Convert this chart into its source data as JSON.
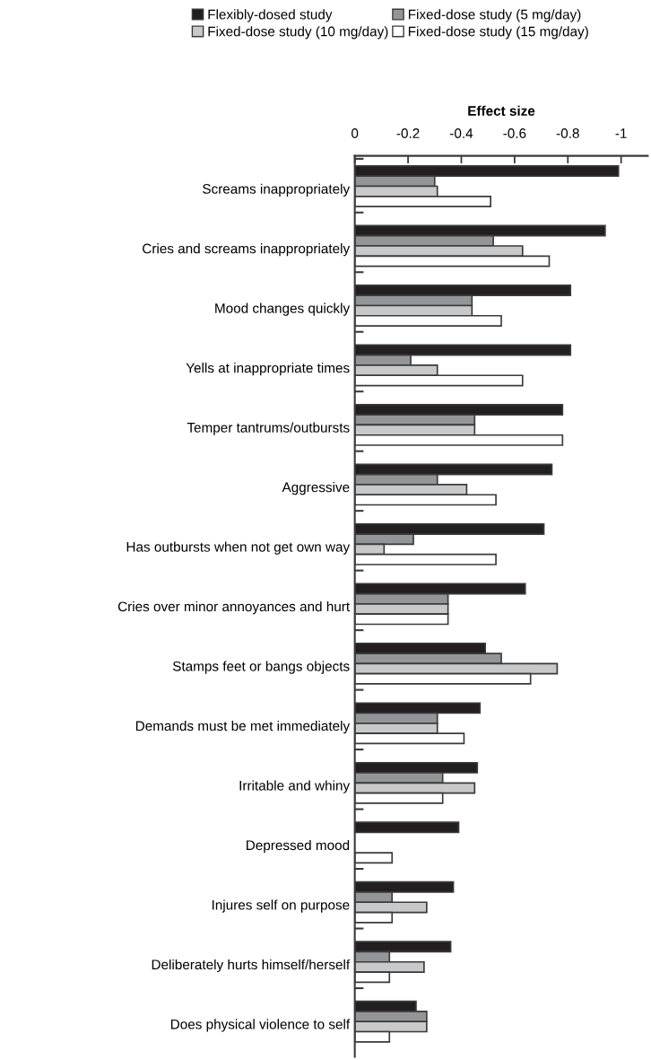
{
  "chart_data": {
    "type": "bar",
    "orientation": "horizontal",
    "xlabel": "Effect size",
    "categories": [
      "Screams inappropriately",
      "Cries and screams inappropriately",
      "Mood changes quickly",
      "Yells at inappropriate times",
      "Temper tantrums/outbursts",
      "Aggressive",
      "Has outbursts when not get own way",
      "Cries over minor annoyances and hurt",
      "Stamps feet or bangs objects",
      "Demands must be met immediately",
      "Irritable and whiny",
      "Depressed mood",
      "Injures self on purpose",
      "Deliberately hurts himself/herself",
      "Does physical violence to self"
    ],
    "series": [
      {
        "name": "Flexibly-dosed study",
        "color": "#231f20",
        "values": [
          -0.99,
          -0.94,
          -0.81,
          -0.81,
          -0.78,
          -0.74,
          -0.71,
          -0.64,
          -0.49,
          -0.47,
          -0.46,
          -0.39,
          -0.37,
          -0.36,
          -0.23
        ]
      },
      {
        "name": "Fixed-dose study (5 mg/day)",
        "color": "#939598",
        "values": [
          -0.3,
          -0.52,
          -0.44,
          -0.21,
          -0.45,
          -0.31,
          -0.22,
          -0.35,
          -0.55,
          -0.31,
          -0.33,
          null,
          -0.14,
          -0.13,
          -0.27
        ]
      },
      {
        "name": "Fixed-dose study (10 mg/day)",
        "color": "#c8c9cb",
        "values": [
          -0.31,
          -0.63,
          -0.44,
          -0.31,
          -0.45,
          -0.42,
          -0.11,
          -0.35,
          -0.76,
          -0.31,
          -0.45,
          null,
          -0.27,
          -0.26,
          -0.27
        ]
      },
      {
        "name": "Fixed-dose study (15 mg/day)",
        "color": "#ffffff",
        "values": [
          -0.51,
          -0.73,
          -0.55,
          -0.63,
          -0.78,
          -0.53,
          -0.53,
          -0.35,
          -0.66,
          -0.41,
          -0.33,
          -0.14,
          -0.14,
          -0.13,
          -0.13
        ]
      }
    ],
    "xlim": [
      0,
      -1.1
    ],
    "xticks": [
      0,
      -0.2,
      -0.4,
      -0.6,
      -0.8,
      -1
    ],
    "grid": false,
    "legend": "top"
  }
}
